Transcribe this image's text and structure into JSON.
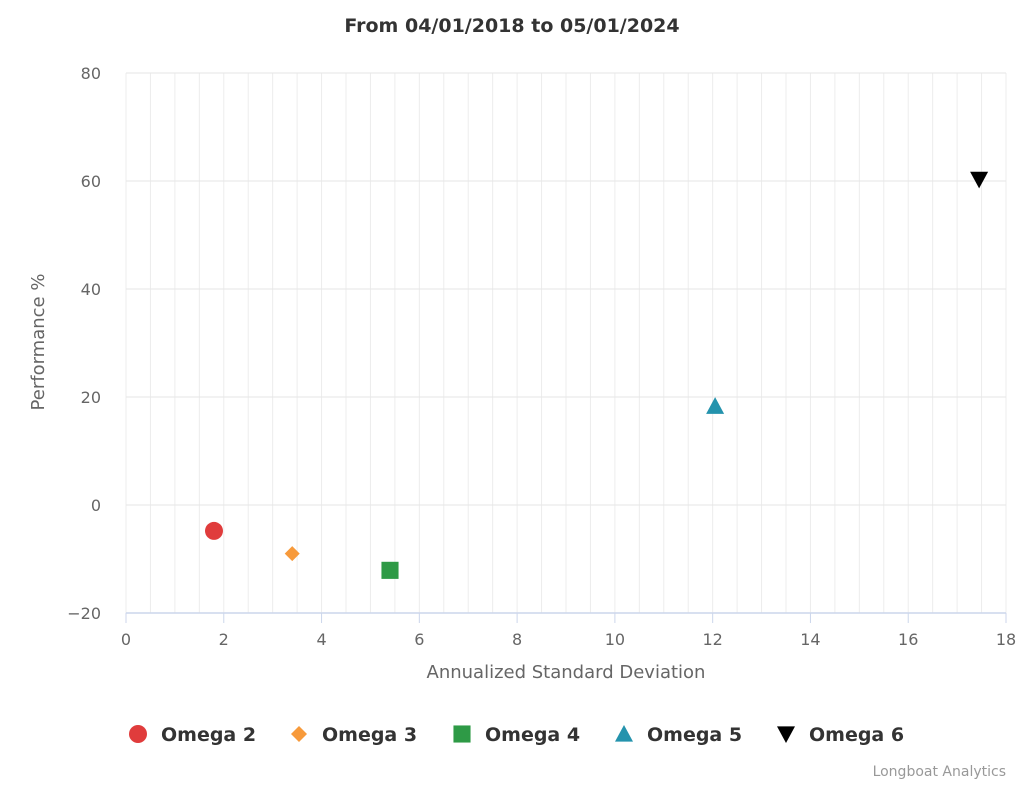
{
  "chart_data": {
    "type": "scatter",
    "title": "From 04/01/2018 to 05/01/2024",
    "xlabel": "Annualized Standard Deviation",
    "ylabel": "Performance %",
    "xlim": [
      0,
      18
    ],
    "ylim": [
      -20,
      80
    ],
    "x_ticks": [
      0,
      2,
      4,
      6,
      8,
      10,
      12,
      14,
      16,
      18
    ],
    "y_ticks": [
      -20,
      0,
      20,
      40,
      60,
      80
    ],
    "grid": true,
    "legend_position": "bottom",
    "series": [
      {
        "name": "Omega 2",
        "marker": "circle",
        "color": "#e03c3c",
        "x": 1.8,
        "y": -4.8
      },
      {
        "name": "Omega 3",
        "marker": "diamond",
        "color": "#f79a3b",
        "x": 3.4,
        "y": -9.0
      },
      {
        "name": "Omega 4",
        "marker": "square",
        "color": "#2e9a46",
        "x": 5.4,
        "y": -12.1
      },
      {
        "name": "Omega 5",
        "marker": "triangle",
        "color": "#2493ad",
        "x": 12.05,
        "y": 18.3
      },
      {
        "name": "Omega 6",
        "marker": "triangle-down",
        "color": "#000000",
        "x": 17.45,
        "y": 60.3
      }
    ]
  },
  "credit": "Longboat Analytics"
}
